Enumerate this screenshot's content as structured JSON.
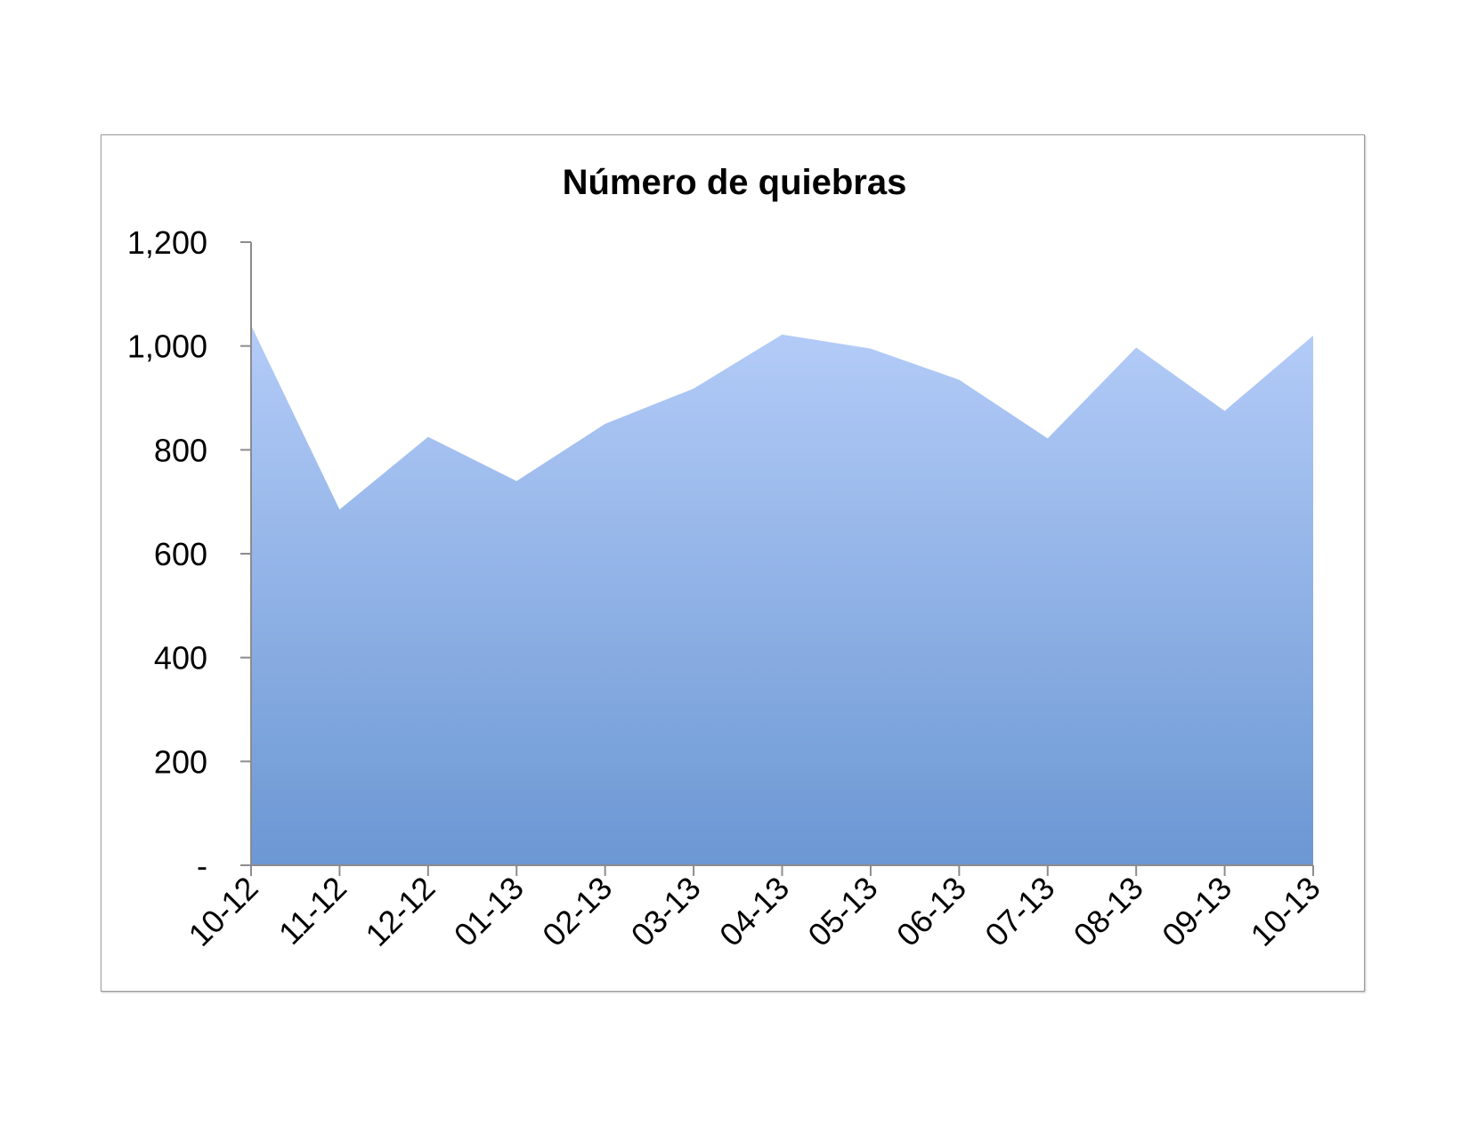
{
  "chart_data": {
    "type": "area",
    "title": "Número de quiebras",
    "xlabel": "",
    "ylabel": "",
    "categories": [
      "10-12",
      "11-12",
      "12-12",
      "01-13",
      "02-13",
      "03-13",
      "04-13",
      "05-13",
      "06-13",
      "07-13",
      "08-13",
      "09-13",
      "10-13"
    ],
    "values": [
      1040,
      685,
      825,
      740,
      850,
      918,
      1022,
      995,
      935,
      822,
      997,
      875,
      1020
    ],
    "ylim": [
      0,
      1200
    ],
    "yticks": [
      0,
      200,
      400,
      600,
      800,
      1000,
      1200
    ],
    "ytick_labels": [
      "-",
      "200",
      "400",
      "600",
      "800",
      "1,000",
      "1,200"
    ],
    "grid": false,
    "legend": "none",
    "fill_top_color": "#b4ccf8",
    "fill_bottom_color": "#6b97d3",
    "axis_color": "#8c8c8c"
  }
}
